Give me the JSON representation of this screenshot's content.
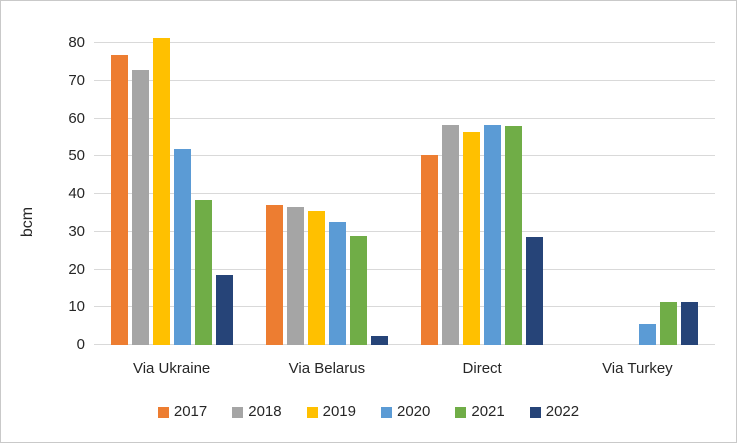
{
  "chart_data": {
    "type": "bar",
    "title": "",
    "xlabel": "",
    "ylabel": "bcm",
    "ylim": [
      0,
      80
    ],
    "ytick_step": 10,
    "grid": true,
    "legend_position": "bottom",
    "categories": [
      "Via Ukraine",
      "Via Belarus",
      "Direct",
      "Via Turkey"
    ],
    "series": [
      {
        "name": "2017",
        "color": "#ED7D31",
        "values": [
          77,
          37,
          50.5,
          0
        ]
      },
      {
        "name": "2018",
        "color": "#A5A5A5",
        "values": [
          73,
          36.5,
          58.3,
          0
        ]
      },
      {
        "name": "2019",
        "color": "#FFC000",
        "values": [
          81.5,
          35.5,
          56.4,
          0
        ]
      },
      {
        "name": "2020",
        "color": "#5B9BD5",
        "values": [
          52,
          32.5,
          58.4,
          5.5
        ]
      },
      {
        "name": "2021",
        "color": "#70AD47",
        "values": [
          38.5,
          29,
          58.2,
          11.5
        ]
      },
      {
        "name": "2022",
        "color": "#264478",
        "values": [
          18.5,
          2.5,
          28.7,
          11.5
        ]
      }
    ]
  }
}
